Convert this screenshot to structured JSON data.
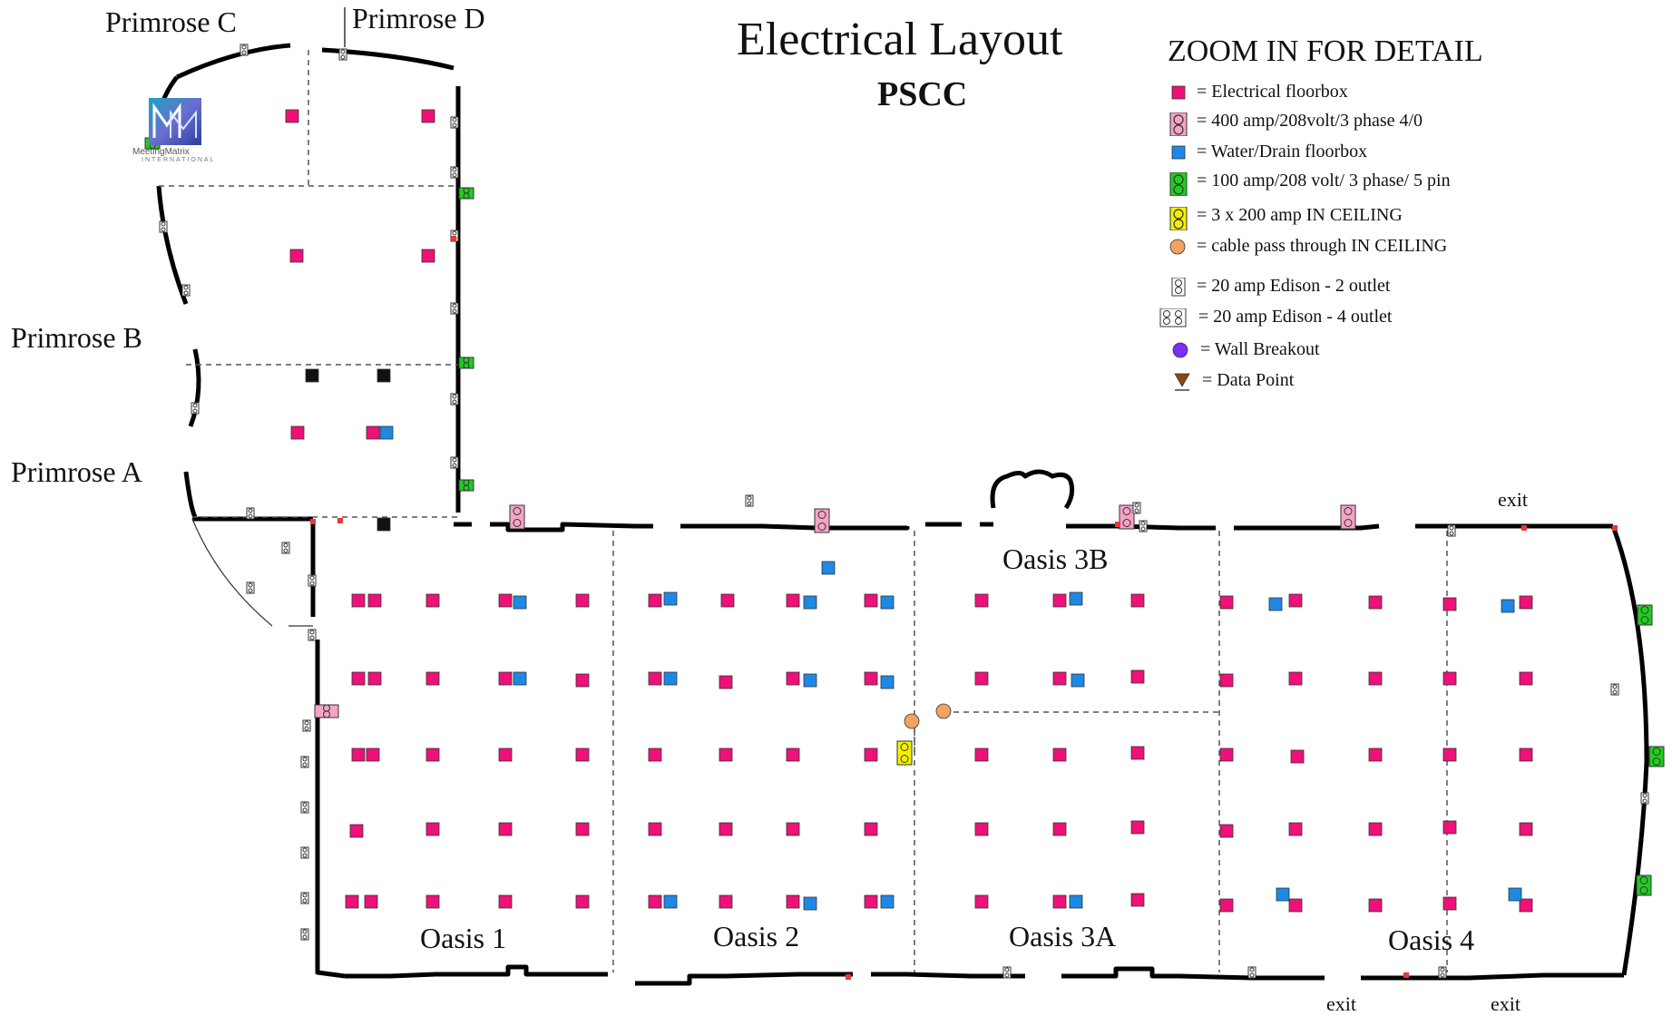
{
  "title": "Electrical Layout",
  "subtitle": "PSCC",
  "legend": {
    "heading": "ZOOM IN FOR DETAIL",
    "items": [
      {
        "icon": "electrical-floorbox-icon",
        "label": "= Electrical floorbox"
      },
      {
        "icon": "400-amp-outlet-icon",
        "label": "= 400 amp/208volt/3 phase 4/0"
      },
      {
        "icon": "water-drain-floorbox-icon",
        "label": "= Water/Drain floorbox"
      },
      {
        "icon": "100-amp-outlet-icon",
        "label": "= 100 amp/208 volt/ 3 phase/ 5 pin"
      },
      {
        "icon": "200-amp-ceiling-icon",
        "label": "= 3 x 200 amp IN CEILING"
      },
      {
        "icon": "cable-pass-through-icon",
        "label": "= cable pass through IN CEILING"
      },
      {
        "icon": "edison-2-outlet-icon",
        "label": "= 20 amp Edison - 2 outlet"
      },
      {
        "icon": "edison-4-outlet-icon",
        "label": "= 20 amp Edison - 4 outlet"
      },
      {
        "icon": "wall-breakout-icon",
        "label": "= Wall Breakout"
      },
      {
        "icon": "data-point-icon",
        "label": "= Data Point"
      }
    ]
  },
  "rooms": {
    "primrose_a": "Primrose A",
    "primrose_b": "Primrose B",
    "primrose_c": "Primrose C",
    "primrose_d": "Primrose D",
    "oasis_1": "Oasis 1",
    "oasis_2": "Oasis 2",
    "oasis_3a": "Oasis 3A",
    "oasis_3b": "Oasis 3B",
    "oasis_4": "Oasis 4"
  },
  "exits": {
    "top": "exit",
    "bottom_left": "exit",
    "bottom_right": "exit"
  },
  "logo": {
    "text": "MeetingMatrix",
    "sub": "INTERNATIONAL"
  },
  "colors": {
    "electrical": "#ee1177",
    "water": "#1e88e5",
    "amp400": "#f5a3c7",
    "amp100": "#22cc22",
    "amp200": "#f5f000",
    "cable": "#f4a261",
    "wall_breakout": "#7b2ff7",
    "data_point": "#8b4513",
    "wall": "#000000"
  }
}
